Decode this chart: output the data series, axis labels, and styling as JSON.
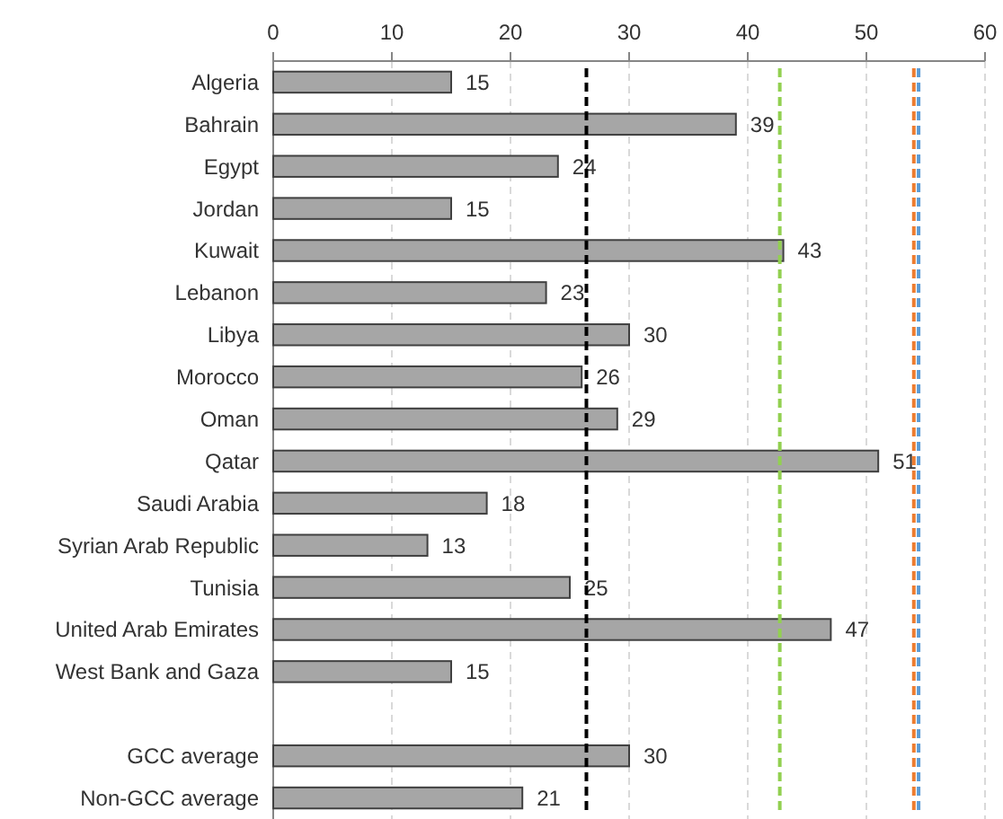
{
  "chart_data": {
    "type": "bar",
    "orientation": "horizontal",
    "categories": [
      "Algeria",
      "Bahrain",
      "Egypt",
      "Jordan",
      "Kuwait",
      "Lebanon",
      "Libya",
      "Morocco",
      "Oman",
      "Qatar",
      "Saudi Arabia",
      "Syrian Arab Republic",
      "Tunisia",
      "United Arab Emirates",
      "West Bank and Gaza",
      null,
      "GCC average",
      "Non-GCC average"
    ],
    "values": [
      15,
      39,
      24,
      15,
      43,
      23,
      30,
      26,
      29,
      51,
      18,
      13,
      25,
      47,
      15,
      null,
      30,
      21
    ],
    "color": "#a6a6a6",
    "data_labels": true,
    "xlim": [
      0,
      60
    ],
    "xticks": [
      0,
      10,
      20,
      30,
      40,
      50,
      60
    ],
    "grid": "x",
    "ref_lines": [
      {
        "axis": "x",
        "value": 26.4,
        "color": "#000000",
        "line_style": "dashed"
      },
      {
        "axis": "x",
        "value": 42.7,
        "color": "#92d050",
        "line_style": "dashed"
      },
      {
        "axis": "x",
        "value": 54.0,
        "color": "#ed7d31",
        "line_style": "dashed"
      },
      {
        "axis": "x",
        "value": 54.4,
        "color": "#5b9bd5",
        "line_style": "dashed"
      }
    ]
  }
}
